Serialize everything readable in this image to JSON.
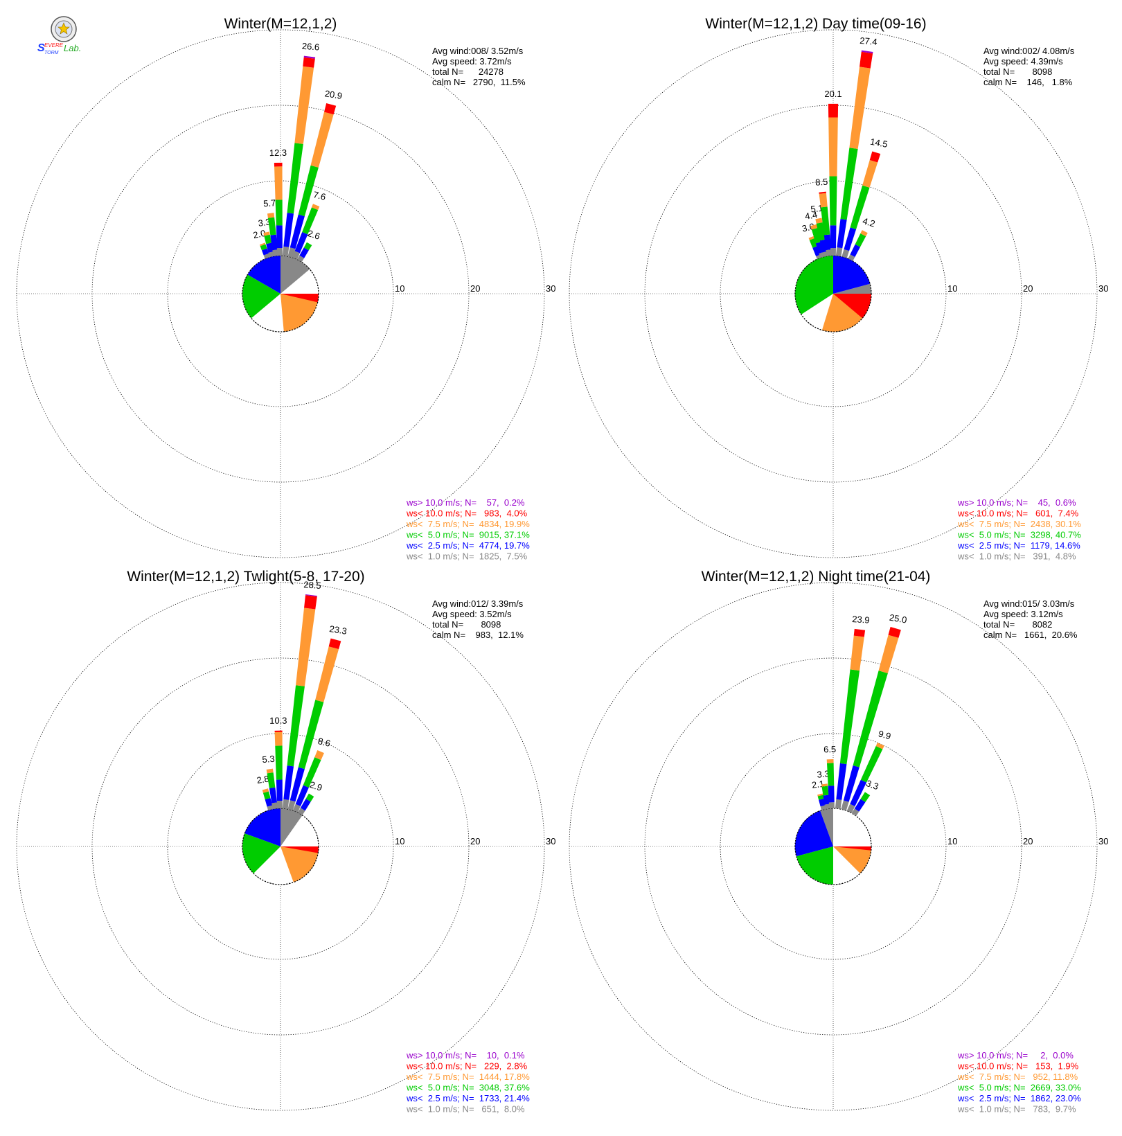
{
  "logo": {
    "text": "SEVERE STORM Lab."
  },
  "colors": {
    "gt10": "#9900cc",
    "lt10": "#ff0000",
    "lt7_5": "#ff9933",
    "lt5": "#00cc00",
    "lt2_5": "#0000ff",
    "lt1": "#888888"
  },
  "chart_data": [
    {
      "type": "windrose",
      "title": "Winter(M=12,1,2)",
      "rmax": 30,
      "ring_ticks": [
        10,
        20,
        30
      ],
      "stats": [
        "Avg wind:008/ 3.52m/s",
        "Avg speed: 3.72m/s",
        "total N=      24278",
        "calm N=   2790,  11.5%"
      ],
      "legend": [
        {
          "key": "gt10",
          "text": "ws> 10.0 m/s; N=    57,  0.2%"
        },
        {
          "key": "lt10",
          "text": "ws< 10.0 m/s; N=   983,  4.0%"
        },
        {
          "key": "lt7_5",
          "text": "ws<  7.5 m/s; N=  4834, 19.9%"
        },
        {
          "key": "lt5",
          "text": "ws<  5.0 m/s; N=  9015, 37.1%"
        },
        {
          "key": "lt2_5",
          "text": "ws<  2.5 m/s; N=  4774, 19.7%"
        },
        {
          "key": "lt1",
          "text": "ws<  1.0 m/s; N=  1825,  7.5%"
        }
      ],
      "pie": [
        {
          "key": "lt1",
          "from": 0,
          "to": 50
        },
        {
          "key": "lt2_5",
          "from": 300,
          "to": 360
        },
        {
          "key": "lt5",
          "from": 230,
          "to": 300
        },
        {
          "key": "lt7_5",
          "from": 90,
          "to": 175
        },
        {
          "key": "lt10",
          "from": 90,
          "to": 103
        }
      ],
      "petals": [
        {
          "dir": -20,
          "total": 2.0,
          "label": "2.0",
          "segments": [
            0.5,
            0.7,
            0.6,
            0.2
          ]
        },
        {
          "dir": -13,
          "total": 3.3,
          "label": "3.3",
          "segments": [
            0.6,
            1.2,
            1.1,
            0.4
          ]
        },
        {
          "dir": -7,
          "total": 5.7,
          "label": "5.7",
          "segments": [
            0.8,
            2.0,
            2.3,
            0.6
          ]
        },
        {
          "dir": -1,
          "total": 12.3,
          "label": "12.3",
          "segments": [
            1.0,
            3.0,
            3.4,
            4.4,
            0.5
          ]
        },
        {
          "dir": 7,
          "total": 26.6,
          "label": "26.6",
          "segments": [
            1.2,
            4.5,
            9.3,
            10.2,
            1.2,
            0.2
          ]
        },
        {
          "dir": 15,
          "total": 20.9,
          "label": "20.9",
          "segments": [
            1.2,
            4.5,
            6.7,
            7.3,
            1.2
          ]
        },
        {
          "dir": 22,
          "total": 7.6,
          "label": "7.6",
          "segments": [
            0.9,
            2.7,
            3.5,
            0.5
          ]
        },
        {
          "dir": 30,
          "total": 2.6,
          "label": "2.6",
          "segments": [
            0.6,
            1.2,
            0.8
          ]
        }
      ]
    },
    {
      "type": "windrose",
      "title": "Winter(M=12,1,2) Day time(09-16)",
      "rmax": 30,
      "ring_ticks": [
        10,
        20,
        30
      ],
      "stats": [
        "Avg wind:002/ 4.08m/s",
        "Avg speed: 4.39m/s",
        "total N=       8098",
        "calm N=    146,   1.8%"
      ],
      "legend": [
        {
          "key": "gt10",
          "text": "ws> 10.0 m/s; N=    45,  0.6%"
        },
        {
          "key": "lt10",
          "text": "ws< 10.0 m/s; N=   601,  7.4%"
        },
        {
          "key": "lt7_5",
          "text": "ws<  7.5 m/s; N=  2438, 30.1%"
        },
        {
          "key": "lt5",
          "text": "ws<  5.0 m/s; N=  3298, 40.7%"
        },
        {
          "key": "lt2_5",
          "text": "ws<  2.5 m/s; N=  1179, 14.6%"
        },
        {
          "key": "lt1",
          "text": "ws<  1.0 m/s; N=   391,  4.8%"
        }
      ],
      "pie": [
        {
          "key": "lt1",
          "from": 75,
          "to": 90
        },
        {
          "key": "lt2_5",
          "from": 0,
          "to": 75
        },
        {
          "key": "lt5",
          "from": 237,
          "to": 360
        },
        {
          "key": "lt7_5",
          "from": 90,
          "to": 197
        },
        {
          "key": "lt10",
          "from": 90,
          "to": 130
        }
      ],
      "petals": [
        {
          "dir": -21,
          "total": 3.0,
          "label": "3.0",
          "segments": [
            0.4,
            1.2,
            1.1,
            0.3
          ]
        },
        {
          "dir": -16,
          "total": 4.4,
          "label": "4.4",
          "segments": [
            0.6,
            1.4,
            1.9,
            0.5
          ]
        },
        {
          "dir": -11,
          "total": 5.1,
          "label": "5.1",
          "segments": [
            0.6,
            1.6,
            2.3,
            0.6
          ]
        },
        {
          "dir": -6,
          "total": 8.5,
          "label": "8.5",
          "segments": [
            0.8,
            2.0,
            3.7,
            1.8,
            0.2
          ]
        },
        {
          "dir": 0,
          "total": 20.1,
          "label": "20.1",
          "segments": [
            1.0,
            3.0,
            6.5,
            7.8,
            1.8
          ]
        },
        {
          "dir": 8,
          "total": 27.4,
          "label": "27.4",
          "segments": [
            1.1,
            3.8,
            9.5,
            10.8,
            2.0,
            0.2
          ]
        },
        {
          "dir": 17,
          "total": 14.5,
          "label": "14.5",
          "segments": [
            1.0,
            3.0,
            5.8,
            3.5,
            1.2
          ]
        },
        {
          "dir": 27,
          "total": 4.2,
          "label": "4.2",
          "segments": [
            0.6,
            1.5,
            1.6,
            0.5
          ]
        }
      ]
    },
    {
      "type": "windrose",
      "title": "Winter(M=12,1,2) Twlight(5-8, 17-20)",
      "rmax": 30,
      "ring_ticks": [
        10,
        20,
        30
      ],
      "stats": [
        "Avg wind:012/ 3.39m/s",
        "Avg speed: 3.52m/s",
        "total N=       8098",
        "calm N=    983,  12.1%"
      ],
      "legend": [
        {
          "key": "gt10",
          "text": "ws> 10.0 m/s; N=    10,  0.1%"
        },
        {
          "key": "lt10",
          "text": "ws< 10.0 m/s; N=   229,  2.8%"
        },
        {
          "key": "lt7_5",
          "text": "ws<  7.5 m/s; N=  1444, 17.8%"
        },
        {
          "key": "lt5",
          "text": "ws<  5.0 m/s; N=  3048, 37.6%"
        },
        {
          "key": "lt2_5",
          "text": "ws<  2.5 m/s; N=  1733, 21.4%"
        },
        {
          "key": "lt1",
          "text": "ws<  1.0 m/s; N=   651,  8.0%"
        }
      ],
      "pie": [
        {
          "key": "lt1",
          "from": 0,
          "to": 35
        },
        {
          "key": "lt2_5",
          "from": 290,
          "to": 360
        },
        {
          "key": "lt5",
          "from": 225,
          "to": 290
        },
        {
          "key": "lt7_5",
          "from": 90,
          "to": 160
        },
        {
          "key": "lt10",
          "from": 90,
          "to": 100
        }
      ],
      "petals": [
        {
          "dir": -15,
          "total": 2.8,
          "label": "2.8",
          "segments": [
            0.5,
            1.0,
            0.9,
            0.4
          ]
        },
        {
          "dir": -8,
          "total": 5.3,
          "label": "5.3",
          "segments": [
            0.8,
            2.0,
            2.0,
            0.5
          ]
        },
        {
          "dir": -1,
          "total": 10.3,
          "label": "10.3",
          "segments": [
            1.0,
            2.8,
            4.5,
            1.8,
            0.2
          ]
        },
        {
          "dir": 7,
          "total": 28.5,
          "label": "28.5",
          "segments": [
            1.2,
            4.5,
            10.7,
            10.3,
            1.7,
            0.1
          ]
        },
        {
          "dir": 15,
          "total": 23.3,
          "label": "23.3",
          "segments": [
            1.2,
            4.5,
            9.2,
            7.3,
            1.1
          ]
        },
        {
          "dir": 23,
          "total": 8.6,
          "label": "8.6",
          "segments": [
            0.9,
            2.7,
            4.0,
            1.0
          ]
        },
        {
          "dir": 31,
          "total": 2.9,
          "label": "2.9",
          "segments": [
            0.7,
            1.4,
            0.8
          ]
        }
      ]
    },
    {
      "type": "windrose",
      "title": "Winter(M=12,1,2) Night time(21-04)",
      "rmax": 30,
      "ring_ticks": [
        10,
        20,
        30
      ],
      "stats": [
        "Avg wind:015/ 3.03m/s",
        "Avg speed: 3.12m/s",
        "total N=       8082",
        "calm N=   1661,  20.6%"
      ],
      "legend": [
        {
          "key": "gt10",
          "text": "ws> 10.0 m/s; N=     2,  0.0%"
        },
        {
          "key": "lt10",
          "text": "ws< 10.0 m/s; N=   153,  1.9%"
        },
        {
          "key": "lt7_5",
          "text": "ws<  7.5 m/s; N=   952, 11.8%"
        },
        {
          "key": "lt5",
          "text": "ws<  5.0 m/s; N=  2669, 33.0%"
        },
        {
          "key": "lt2_5",
          "text": "ws<  2.5 m/s; N=  1862, 23.0%"
        },
        {
          "key": "lt1",
          "text": "ws<  1.0 m/s; N=   783,  9.7%"
        }
      ],
      "pie": [
        {
          "key": "lt1",
          "from": 340,
          "to": 360
        },
        {
          "key": "lt2_5",
          "from": 255,
          "to": 340
        },
        {
          "key": "lt5",
          "from": 180,
          "to": 255
        },
        {
          "key": "lt7_5",
          "from": 90,
          "to": 135
        },
        {
          "key": "lt10",
          "from": 90,
          "to": 96
        }
      ],
      "petals": [
        {
          "dir": -14,
          "total": 2.1,
          "label": "2.1",
          "segments": [
            0.5,
            0.9,
            0.5,
            0.2
          ]
        },
        {
          "dir": -8,
          "total": 3.3,
          "label": "3.3",
          "segments": [
            0.6,
            1.2,
            1.2,
            0.3
          ]
        },
        {
          "dir": -2,
          "total": 6.5,
          "label": "6.5",
          "segments": [
            0.8,
            2.2,
            3.0,
            0.5
          ]
        },
        {
          "dir": 7,
          "total": 23.9,
          "label": "23.9",
          "segments": [
            1.2,
            4.8,
            12.5,
            4.5,
            0.9
          ]
        },
        {
          "dir": 16,
          "total": 25.0,
          "label": "25.0",
          "segments": [
            1.2,
            4.8,
            13.0,
            4.9,
            1.1
          ]
        },
        {
          "dir": 25,
          "total": 9.9,
          "label": "9.9",
          "segments": [
            1.0,
            3.5,
            4.9,
            0.5
          ]
        },
        {
          "dir": 33,
          "total": 3.3,
          "label": "3.3",
          "segments": [
            0.7,
            1.5,
            1.1
          ]
        }
      ]
    }
  ]
}
